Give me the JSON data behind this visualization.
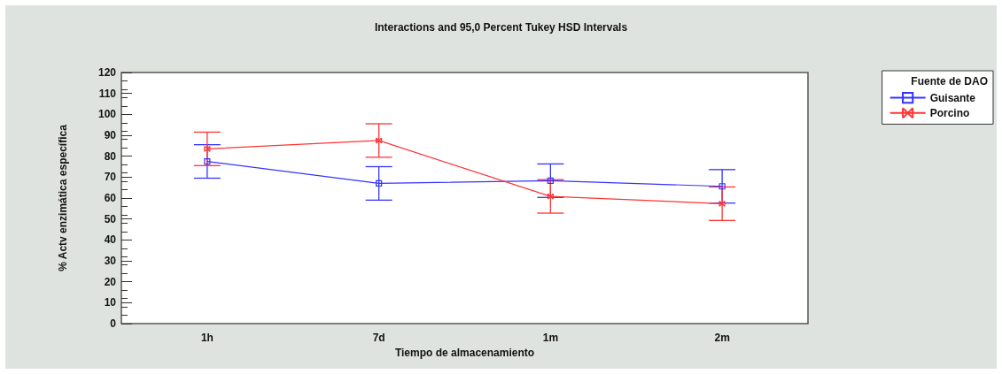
{
  "chart_data": {
    "type": "line",
    "title": "Interactions and 95,0 Percent Tukey HSD Intervals",
    "xlabel": "Tiempo de almacenamiento",
    "ylabel": "% Actv enzimática específica",
    "legend_title": "Fuente de DAO",
    "categories": [
      "1h",
      "7d",
      "1m",
      "2m"
    ],
    "series": [
      {
        "name": "Guisante",
        "color": "#3333ff",
        "marker": "square",
        "values": [
          77.5,
          67,
          68.3,
          65.6
        ],
        "errors": [
          8,
          8,
          8,
          8
        ]
      },
      {
        "name": "Porcino",
        "color": "#ff3333",
        "marker": "cross",
        "values": [
          83.5,
          87.5,
          60.8,
          57.3
        ],
        "errors": [
          8,
          8,
          8,
          8
        ]
      }
    ],
    "ylim": [
      0,
      120
    ],
    "yticks": [
      0,
      10,
      20,
      30,
      40,
      50,
      60,
      70,
      80,
      90,
      100,
      110,
      120
    ],
    "grid": false,
    "legend": "top right",
    "line_style": "solid"
  }
}
